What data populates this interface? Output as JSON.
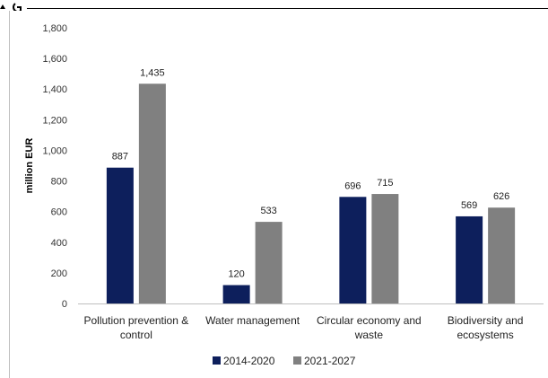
{
  "chart_data": {
    "type": "bar",
    "title": "",
    "xlabel": "",
    "ylabel": "million EUR",
    "ylim": [
      0,
      1800
    ],
    "yticks": [
      0,
      200,
      400,
      600,
      800,
      1000,
      1200,
      1400,
      1600,
      1800
    ],
    "ytick_labels": [
      "0",
      "200",
      "400",
      "600",
      "800",
      "1,000",
      "1,200",
      "1,400",
      "1,600",
      "1,800"
    ],
    "categories": [
      [
        "Pollution prevention &",
        "control"
      ],
      [
        "Water management"
      ],
      [
        "Circular economy and",
        "waste"
      ],
      [
        "Biodiversity and",
        "ecosystems"
      ]
    ],
    "series": [
      {
        "name": "2014-2020",
        "color": "#0d1f5c",
        "values": [
          887,
          120,
          696,
          569
        ],
        "labels": [
          "887",
          "120",
          "696",
          "569"
        ]
      },
      {
        "name": "2021-2027",
        "color": "#808080",
        "values": [
          1435,
          533,
          715,
          626
        ],
        "labels": [
          "1,435",
          "533",
          "715",
          "626"
        ]
      }
    ],
    "grid": false,
    "legend_position": "bottom"
  }
}
